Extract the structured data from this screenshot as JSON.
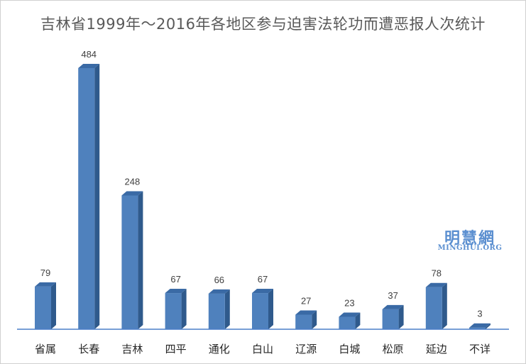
{
  "chart_data": {
    "type": "bar",
    "title": "吉林省1999年～2016年各地区参与迫害法轮功而遭恶报人次统计",
    "categories": [
      "省属",
      "长春",
      "吉林",
      "四平",
      "通化",
      "白山",
      "辽源",
      "白城",
      "松原",
      "延边",
      "不详"
    ],
    "values": [
      79,
      484,
      248,
      67,
      66,
      67,
      27,
      23,
      37,
      78,
      3
    ],
    "ylim": [
      0,
      500
    ],
    "grid": false,
    "legend": "none",
    "bar_colors": {
      "front": "#4f81bd",
      "side": "#2f5a8c",
      "top": "#3a6aa5"
    },
    "axis_color": "#4a7ec8"
  },
  "watermark": {
    "logo_text": "明慧網",
    "url_text": "MINGHUI.ORG",
    "color": "#5b8fd0"
  }
}
